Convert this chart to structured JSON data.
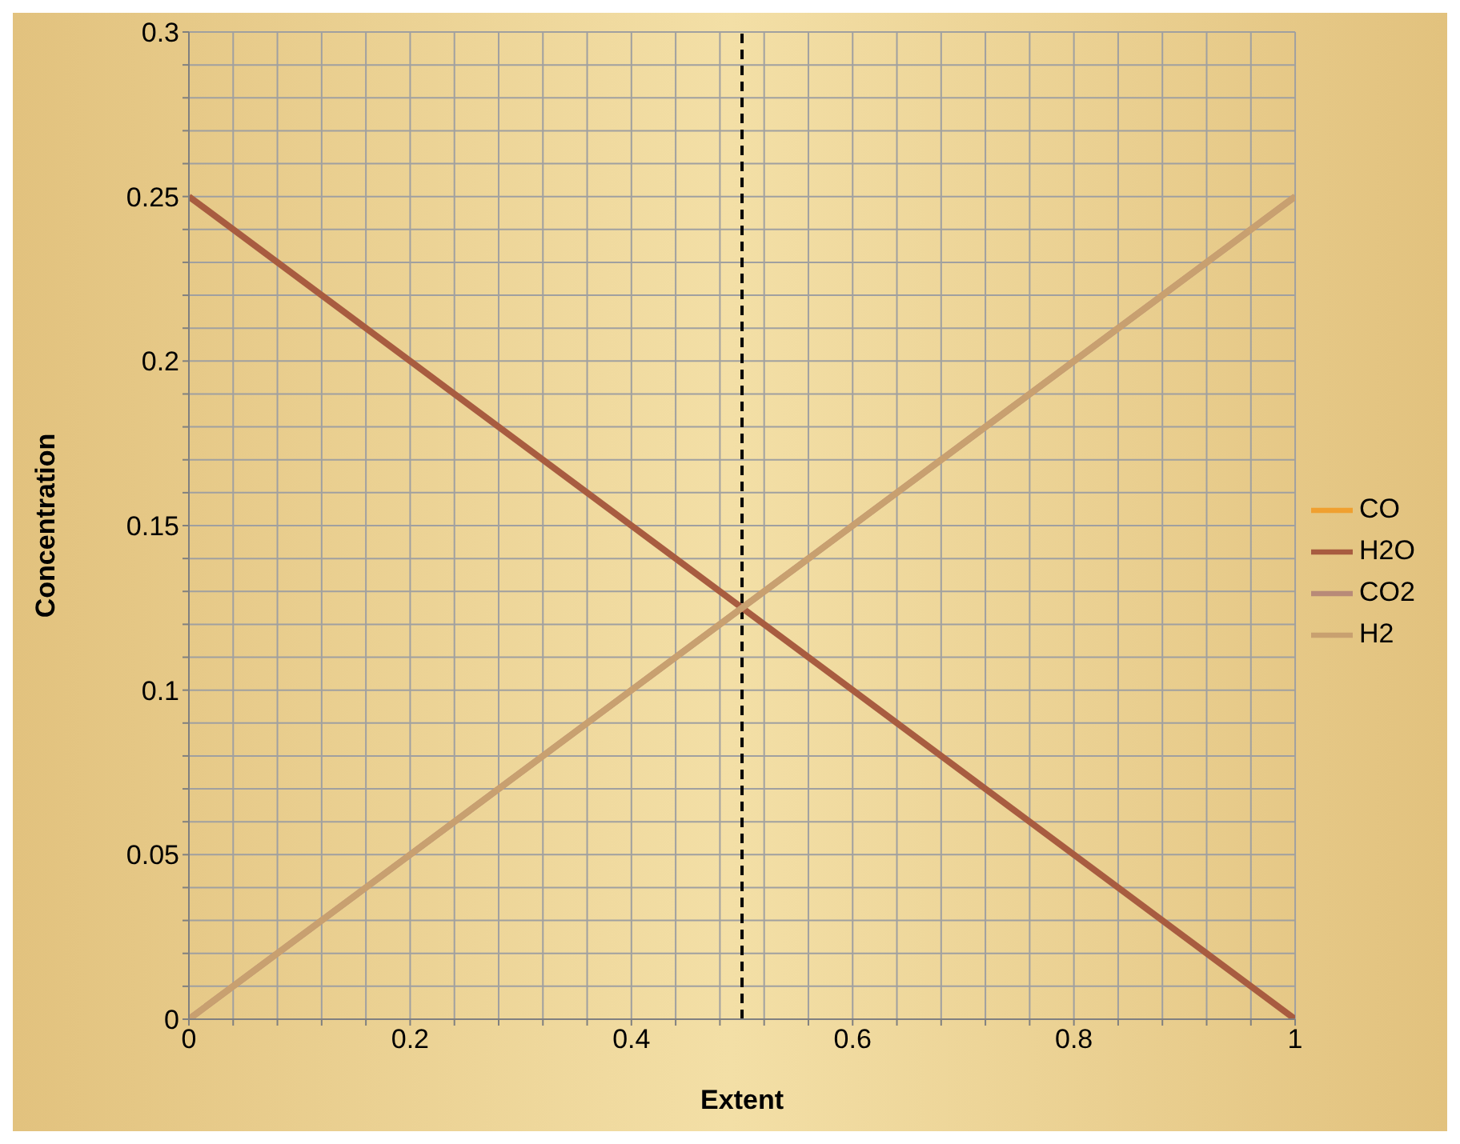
{
  "chart_data": {
    "type": "line",
    "xlabel": "Extent",
    "ylabel": "Concentration",
    "x": [
      0,
      1
    ],
    "series": [
      {
        "name": "CO",
        "color": "#f0a030",
        "values": [
          null,
          null
        ]
      },
      {
        "name": "H2O",
        "color": "#a85c40",
        "values": [
          0.25,
          0
        ]
      },
      {
        "name": "CO2",
        "color": "#b88a78",
        "values": [
          0,
          0.25
        ]
      },
      {
        "name": "H2",
        "color": "#c8a070",
        "values": [
          0,
          0.25
        ]
      }
    ],
    "xlim": [
      0,
      1
    ],
    "xticks": [
      0,
      {
        "value": 0.04,
        "label": null
      },
      {
        "value": 0.08,
        "label": null
      },
      {
        "value": 0.12,
        "label": null
      },
      {
        "value": 0.16,
        "label": null
      },
      0.2,
      {
        "value": 0.24,
        "label": null
      },
      {
        "value": 0.28,
        "label": null
      },
      {
        "value": 0.32,
        "label": null
      },
      {
        "value": 0.36,
        "label": null
      },
      0.4,
      {
        "value": 0.44,
        "label": null
      },
      {
        "value": 0.48,
        "label": null
      },
      {
        "value": 0.52,
        "label": null
      },
      {
        "value": 0.56,
        "label": null
      },
      0.6,
      {
        "value": 0.64,
        "label": null
      },
      {
        "value": 0.68,
        "label": null
      },
      {
        "value": 0.72,
        "label": null
      },
      {
        "value": 0.76,
        "label": null
      },
      0.8,
      {
        "value": 0.84,
        "label": null
      },
      {
        "value": 0.88,
        "label": null
      },
      {
        "value": 0.92,
        "label": null
      },
      {
        "value": 0.96,
        "label": null
      },
      1
    ],
    "ylim": [
      0,
      0.3
    ],
    "yticks": [
      0,
      {
        "value": 0.01,
        "label": null
      },
      {
        "value": 0.02,
        "label": null
      },
      {
        "value": 0.03,
        "label": null
      },
      {
        "value": 0.04,
        "label": null
      },
      0.05,
      {
        "value": 0.06,
        "label": null
      },
      {
        "value": 0.07,
        "label": null
      },
      {
        "value": 0.08,
        "label": null
      },
      {
        "value": 0.09,
        "label": null
      },
      0.1,
      {
        "value": 0.11,
        "label": null
      },
      {
        "value": 0.12,
        "label": null
      },
      {
        "value": 0.13,
        "label": null
      },
      {
        "value": 0.14,
        "label": null
      },
      0.15,
      {
        "value": 0.16,
        "label": null
      },
      {
        "value": 0.17,
        "label": null
      },
      {
        "value": 0.18,
        "label": null
      },
      {
        "value": 0.19,
        "label": null
      },
      0.2,
      {
        "value": 0.21,
        "label": null
      },
      {
        "value": 0.22,
        "label": null
      },
      {
        "value": 0.23,
        "label": null
      },
      {
        "value": 0.24,
        "label": null
      },
      0.25,
      {
        "value": 0.26,
        "label": null
      },
      {
        "value": 0.27,
        "label": null
      },
      {
        "value": 0.28,
        "label": null
      },
      {
        "value": 0.29,
        "label": null
      },
      0.3
    ],
    "ref_lines": [
      {
        "axis": "x",
        "value": 0.5,
        "color": "#000000",
        "line_style": "dashed"
      }
    ],
    "grid": true,
    "legend": "right",
    "marker": "none",
    "line_style": "solid"
  }
}
